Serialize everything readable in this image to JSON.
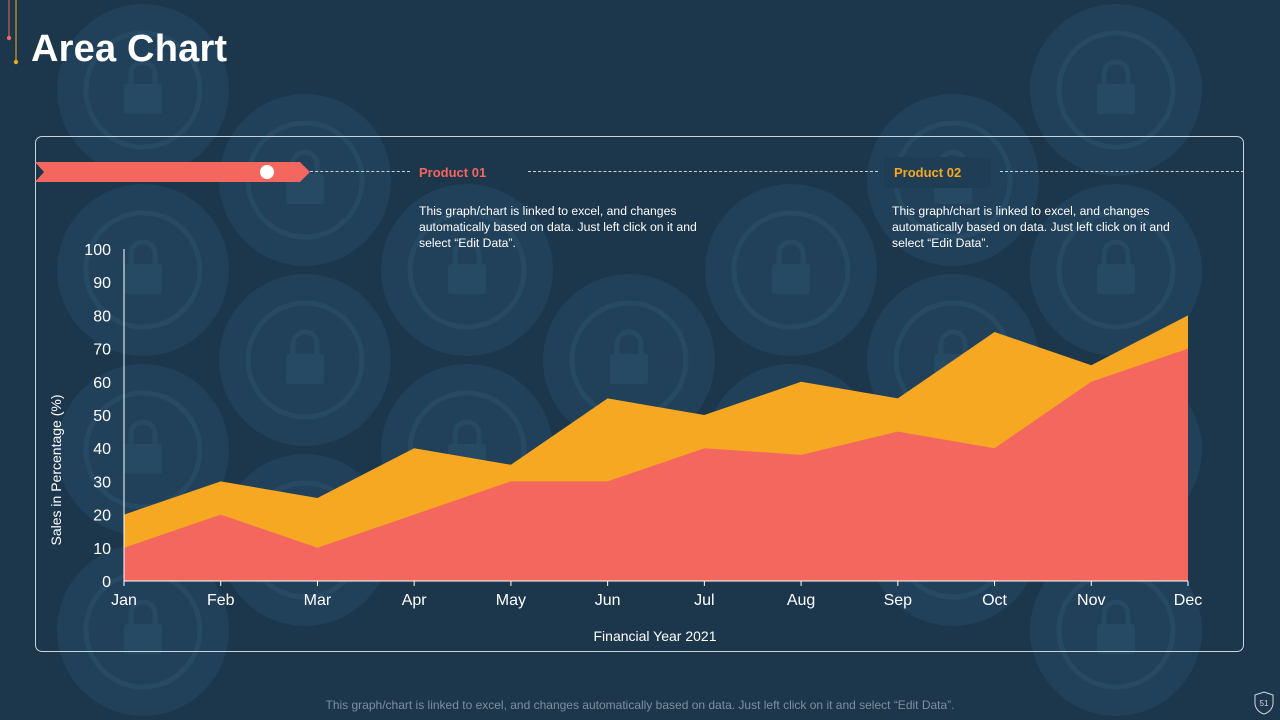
{
  "page": {
    "title": "Area Chart",
    "footer_note": "This graph/chart is linked to excel, and changes automatically based on data. Just left click on it and select “Edit Data”.",
    "page_number": "51"
  },
  "legend": {
    "product1": {
      "label": "Product 01",
      "description": "This graph/chart is linked to excel, and changes automatically based on data. Just left click on it and select “Edit Data”."
    },
    "product2": {
      "label": "Product 02",
      "description": "This graph/chart is linked to excel, and changes automatically based on data. Just left click on it and select “Edit Data”."
    }
  },
  "colors": {
    "background": "#1c364c",
    "product1": "#f3675f",
    "product2": "#f7a823"
  },
  "chart_data": {
    "type": "area",
    "stacked": false,
    "categories": [
      "Jan",
      "Feb",
      "Mar",
      "Apr",
      "May",
      "Jun",
      "Jul",
      "Aug",
      "Sep",
      "Oct",
      "Nov",
      "Dec"
    ],
    "series": [
      {
        "name": "Product 01",
        "color": "#f3675f",
        "values": [
          10,
          20,
          10,
          20,
          30,
          30,
          40,
          38,
          45,
          40,
          60,
          70
        ]
      },
      {
        "name": "Product 02",
        "color": "#f7a823",
        "values": [
          20,
          30,
          25,
          40,
          35,
          55,
          50,
          60,
          55,
          75,
          65,
          80
        ]
      }
    ],
    "xlabel": "Financial Year 2021",
    "ylabel": "Sales in Percentage (%)",
    "ylim": [
      0,
      100
    ],
    "yticks": [
      0,
      10,
      20,
      30,
      40,
      50,
      60,
      70,
      80,
      90,
      100
    ],
    "grid": false
  }
}
